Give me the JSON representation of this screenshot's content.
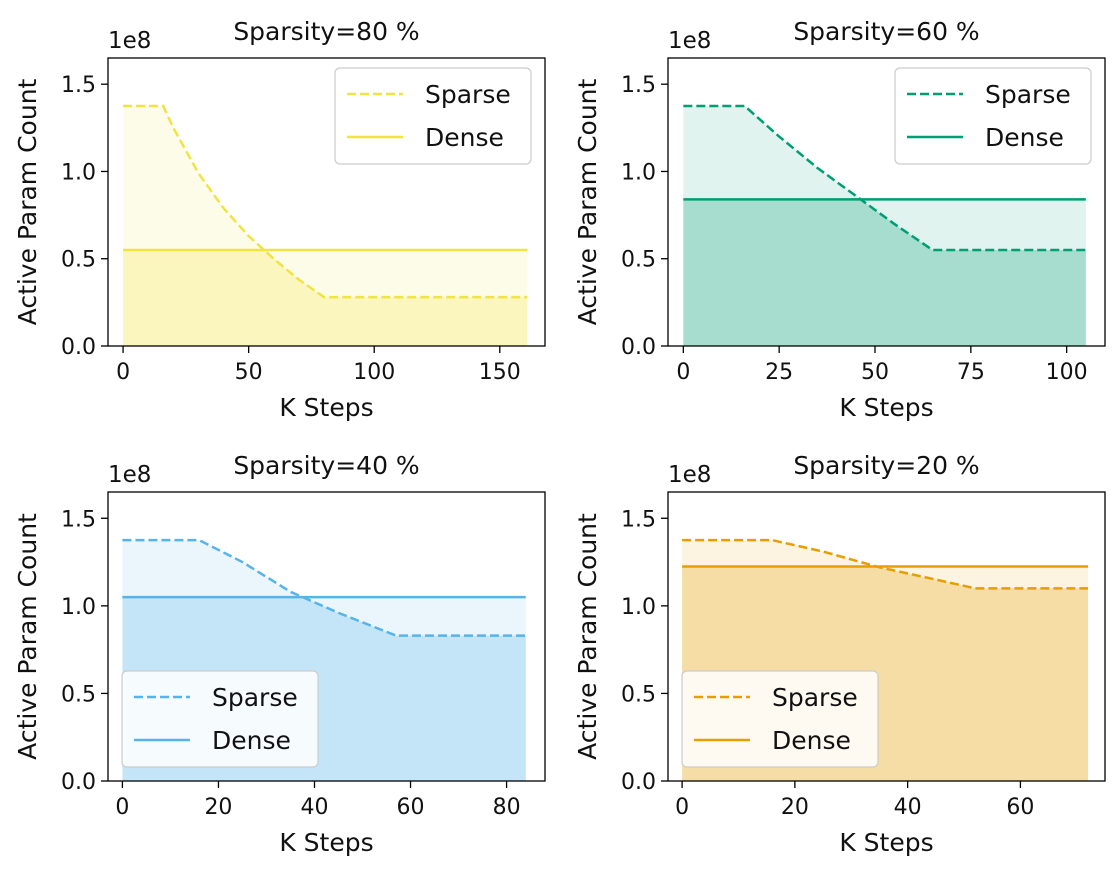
{
  "chart_data": [
    {
      "type": "area",
      "title": "Sparsity=80 %",
      "xlabel": "K Steps",
      "ylabel": "Active Param Count",
      "y_offset_label": "1e8",
      "x_ticks": [
        "0",
        "50",
        "100",
        "150"
      ],
      "y_ticks": [
        "0.0",
        "0.5",
        "1.0",
        "1.5"
      ],
      "xlim": [
        -6,
        168
      ],
      "ylim": [
        0,
        1.65
      ],
      "color": "#f0e442",
      "legend_position": "top-right",
      "series": [
        {
          "name": "Sparse",
          "style": "dashed",
          "x": [
            0,
            16,
            20,
            30,
            40,
            50,
            60,
            70,
            80,
            161
          ],
          "y": [
            1.375,
            1.375,
            1.25,
            0.99,
            0.79,
            0.63,
            0.5,
            0.38,
            0.28,
            0.28
          ]
        },
        {
          "name": "Dense",
          "style": "solid",
          "x": [
            0,
            161
          ],
          "y": [
            0.55,
            0.55
          ]
        }
      ]
    },
    {
      "type": "area",
      "title": "Sparsity=60 %",
      "xlabel": "K Steps",
      "ylabel": "Active Param Count",
      "y_offset_label": "1e8",
      "x_ticks": [
        "0",
        "25",
        "50",
        "75",
        "100"
      ],
      "y_ticks": [
        "0.0",
        "0.5",
        "1.0",
        "1.5"
      ],
      "xlim": [
        -4,
        110
      ],
      "ylim": [
        0,
        1.65
      ],
      "color": "#009e73",
      "legend_position": "top-right",
      "series": [
        {
          "name": "Sparse",
          "style": "dashed",
          "x": [
            0,
            16,
            25,
            35,
            45,
            55,
            65,
            105
          ],
          "y": [
            1.375,
            1.375,
            1.2,
            1.02,
            0.86,
            0.7,
            0.55,
            0.55
          ]
        },
        {
          "name": "Dense",
          "style": "solid",
          "x": [
            0,
            105
          ],
          "y": [
            0.84,
            0.84
          ]
        }
      ]
    },
    {
      "type": "area",
      "title": "Sparsity=40 %",
      "xlabel": "K Steps",
      "ylabel": "Active Param Count",
      "y_offset_label": "1e8",
      "x_ticks": [
        "0",
        "20",
        "40",
        "60",
        "80"
      ],
      "y_ticks": [
        "0.0",
        "0.5",
        "1.0",
        "1.5"
      ],
      "xlim": [
        -3,
        88
      ],
      "ylim": [
        0,
        1.65
      ],
      "color": "#56b4e9",
      "legend_position": "bottom-left",
      "series": [
        {
          "name": "Sparse",
          "style": "dashed",
          "x": [
            0,
            16,
            25,
            35,
            45,
            57,
            84
          ],
          "y": [
            1.375,
            1.375,
            1.25,
            1.08,
            0.96,
            0.83,
            0.83
          ]
        },
        {
          "name": "Dense",
          "style": "solid",
          "x": [
            0,
            84
          ],
          "y": [
            1.05,
            1.05
          ]
        }
      ]
    },
    {
      "type": "area",
      "title": "Sparsity=20 %",
      "xlabel": "K Steps",
      "ylabel": "Active Param Count",
      "y_offset_label": "1e8",
      "x_ticks": [
        "0",
        "20",
        "40",
        "60"
      ],
      "y_ticks": [
        "0.0",
        "0.5",
        "1.0",
        "1.5"
      ],
      "xlim": [
        -2.5,
        75
      ],
      "ylim": [
        0,
        1.65
      ],
      "color": "#e69f00",
      "legend_position": "bottom-left",
      "series": [
        {
          "name": "Sparse",
          "style": "dashed",
          "x": [
            0,
            16,
            25,
            35,
            45,
            52,
            72
          ],
          "y": [
            1.375,
            1.375,
            1.31,
            1.22,
            1.15,
            1.1,
            1.1
          ]
        },
        {
          "name": "Dense",
          "style": "solid",
          "x": [
            0,
            72
          ],
          "y": [
            1.225,
            1.225
          ]
        }
      ]
    }
  ]
}
